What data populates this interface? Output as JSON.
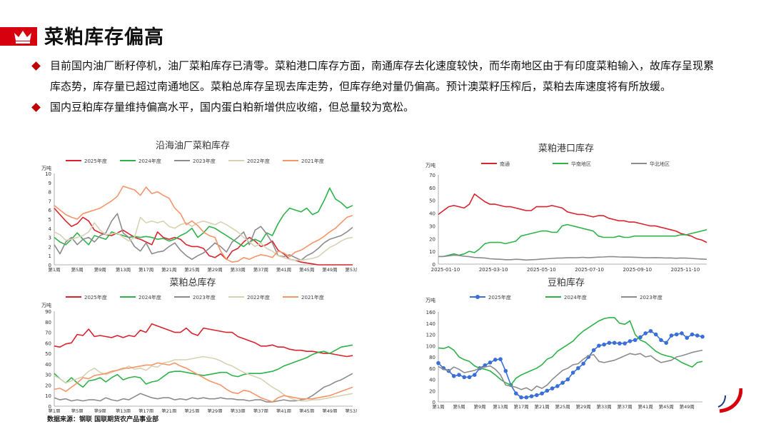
{
  "header": {
    "title": "菜粕库存偏高",
    "icon": "crown-icon"
  },
  "bullets": [
    {
      "text": "目前国内油厂断籽停机，油厂菜粕库存已清零。菜粕港口库存方面，南通库存去化速度较快，而华南地区由于有印度菜粕输入，故库存呈现累库态势，库存量已超过南通地区。菜粕总库存呈现去库走势，但库存绝对量仍偏高。预计澳菜籽压榨后，菜粕去库速度将有所放缓。"
    },
    {
      "text": "国内豆粕库存量维持偏高水平，国内蛋白粕新增供应收缩，但总量较为宽松。"
    }
  ],
  "source": "数据来源：钢联  国联期货农产品事业部",
  "colors": {
    "accent": "#d7000f",
    "red": "#d9232d",
    "green": "#2db34a",
    "gray": "#8c8c8c",
    "beige": "#d8d2b4",
    "orange": "#f4956a",
    "blue": "#3a6fd8"
  },
  "chart_data": [
    {
      "id": "coastal",
      "type": "line",
      "title": "沿海油厂菜粕库存",
      "unit": "万吨",
      "ylim": [
        0,
        10
      ],
      "yticks": [
        0,
        1,
        2,
        3,
        4,
        5,
        6,
        7,
        8,
        9,
        10
      ],
      "xlabels": [
        "第1周",
        "第5周",
        "第9周",
        "第13周",
        "第17周",
        "第21周",
        "第25周",
        "第29周",
        "第33周",
        "第37周",
        "第41周",
        "第45周",
        "第49周",
        "第53周"
      ],
      "xcount": 53,
      "series": [
        {
          "name": "2025年度",
          "color": "#d9232d",
          "values": [
            6.2,
            5.5,
            4.8,
            4.2,
            4.5,
            5.2,
            4.8,
            3.8,
            3.5,
            3.3,
            3.2,
            3.5,
            3.8,
            3.4,
            3.0,
            2.8,
            2.5,
            2.2,
            3.6,
            3.0,
            2.8,
            3.0,
            2.8,
            2.2,
            2.0,
            2.0,
            1.8,
            1.0,
            0.8,
            1.2,
            0.6,
            1.5,
            1.8,
            2.5,
            3.0,
            2.6,
            2.0,
            2.2,
            2.6,
            1.6,
            1.2,
            0.6,
            0.5,
            0.3,
            0.2,
            0.1,
            0,
            0,
            0,
            0,
            0,
            0,
            0
          ]
        },
        {
          "name": "2024年度",
          "color": "#2db34a",
          "values": [
            3.0,
            2.5,
            2.2,
            2.8,
            3.5,
            2.8,
            2.2,
            3.2,
            3.0,
            2.8,
            3.6,
            3.4,
            3.2,
            3.0,
            3.1,
            3.0,
            3.1,
            3.0,
            2.8,
            2.9,
            2.6,
            2.8,
            3.2,
            3.5,
            4.0,
            3.0,
            3.5,
            4.2,
            4.0,
            3.6,
            3.2,
            2.8,
            2.4,
            2.0,
            2.5,
            2.8,
            2.5,
            3.5,
            3.2,
            4.5,
            5.5,
            6.2,
            6.0,
            5.8,
            6.2,
            5.5,
            5.8,
            7.0,
            8.4,
            7.2,
            6.8,
            6.2,
            6.5
          ]
        },
        {
          "name": "2023年度",
          "color": "#8c8c8c",
          "values": [
            2.2,
            1.2,
            2.5,
            3.0,
            2.2,
            2.8,
            3.0,
            2.5,
            3.2,
            3.5,
            4.8,
            5.6,
            3.5,
            3.0,
            2.0,
            1.5,
            2.4,
            1.2,
            1.4,
            1.5,
            2.0,
            2.4,
            1.6,
            1.0,
            0.6,
            1.0,
            1.3,
            1.8,
            2.4,
            2.0,
            1.4,
            2.5,
            3.0,
            3.6,
            2.2,
            3.8,
            4.2,
            3.4,
            2.4,
            1.0,
            0.9,
            1.1,
            0.8,
            0.5,
            1.0,
            1.3,
            1.8,
            2.4,
            2.8,
            3.0,
            3.2,
            3.6,
            4.1
          ]
        },
        {
          "name": "2022年度",
          "color": "#d8d2b4",
          "values": [
            3.6,
            3.3,
            2.7,
            2.8,
            3.0,
            3.2,
            3.6,
            4.6,
            3.8,
            3.3,
            3.4,
            3.5,
            3.0,
            2.6,
            3.0,
            5.2,
            4.6,
            4.8,
            4.6,
            4.8,
            4.2,
            4.0,
            4.4,
            4.6,
            4.2,
            4.6,
            4.8,
            4.6,
            4.4,
            4.7,
            4.4,
            4.0,
            3.6,
            3.0,
            2.5,
            2.0,
            2.4,
            1.8,
            1.5,
            1.0,
            0.8,
            0.6,
            0.5,
            0.5,
            0.6,
            0.7,
            0.9,
            1.4,
            1.9,
            2.2,
            2.6,
            2.9,
            3.0
          ]
        },
        {
          "name": "2021年度",
          "color": "#f4956a",
          "values": [
            6.5,
            6.0,
            5.5,
            5.2,
            5.0,
            5.6,
            5.8,
            6.0,
            6.2,
            6.6,
            7.0,
            7.5,
            8.6,
            8.4,
            8.2,
            7.6,
            8.5,
            7.8,
            8.0,
            7.6,
            7.3,
            6.2,
            5.6,
            4.4,
            4.8,
            4.3,
            3.6,
            3.2,
            3.0,
            1.5,
            0.6,
            0.3,
            0.4,
            0.8,
            0.6,
            0.9,
            1.1,
            1.0,
            0.8,
            1.5,
            1.3,
            0.9,
            1.4,
            1.6,
            2.0,
            2.4,
            2.7,
            3.1,
            3.6,
            4.0,
            4.6,
            5.2,
            5.4
          ]
        }
      ]
    },
    {
      "id": "port",
      "type": "line",
      "title": "菜粕港口库存",
      "unit": "万吨",
      "ylim": [
        0,
        70
      ],
      "yticks": [
        0,
        10,
        20,
        30,
        40,
        50,
        60,
        70
      ],
      "xlabels": [
        "2025-01-10",
        "2025-03-10",
        "2025-05-10",
        "2025-07-10",
        "2025-09-10",
        "2025-11-10"
      ],
      "xcount": 53,
      "series": [
        {
          "name": "南通",
          "color": "#d9232d",
          "values": [
            39,
            42,
            45,
            46,
            45,
            44,
            47,
            55,
            52,
            49,
            47,
            47,
            46,
            45,
            45,
            44,
            43,
            42,
            42,
            45,
            45,
            45,
            46,
            45,
            44,
            41,
            40,
            39,
            39,
            38,
            37,
            38,
            38,
            36,
            35,
            34,
            34,
            33,
            33,
            32,
            31,
            30,
            30,
            29,
            28,
            27,
            26,
            24,
            23,
            22,
            20,
            19,
            17
          ]
        },
        {
          "name": "华南地区",
          "color": "#2db34a",
          "values": [
            6,
            6,
            7,
            8,
            7,
            8,
            10,
            9,
            12,
            16,
            17,
            17,
            17,
            16,
            17,
            18,
            22,
            23,
            24,
            25,
            26,
            26,
            25,
            25,
            30,
            31,
            30,
            29,
            28,
            27,
            26,
            22,
            21,
            21,
            21,
            22,
            21,
            21,
            22,
            22,
            22,
            22,
            22,
            22,
            22,
            22,
            22,
            23,
            23,
            24,
            25,
            26,
            27
          ]
        },
        {
          "name": "华北地区",
          "color": "#8c8c8c",
          "values": [
            6,
            6,
            6.5,
            7,
            6.8,
            6.2,
            5.8,
            5.2,
            5.0,
            4.8,
            4.2,
            4.0,
            3.8,
            3.5,
            3.5,
            3.8,
            3.6,
            3.2,
            3.5,
            3.6,
            4.0,
            4.2,
            4.5,
            4.7,
            4.8,
            5.0,
            5.0,
            5.1,
            5.3,
            5.0,
            5.2,
            5.5,
            5.6,
            5.8,
            5.8,
            5.6,
            5.5,
            5.5,
            5.4,
            5.2,
            5.0,
            5.0,
            5.1,
            5.0,
            4.8,
            4.9,
            4.6,
            4.8,
            4.7,
            4.5,
            4.2,
            4.0,
            3.8
          ]
        }
      ]
    },
    {
      "id": "total",
      "type": "line",
      "title": "菜粕总库存",
      "unit": "万吨",
      "ylim": [
        0,
        90
      ],
      "yticks": [
        0,
        10,
        20,
        30,
        40,
        50,
        60,
        70,
        80,
        90
      ],
      "xlabels": [
        "第1周",
        "第5周",
        "第9周",
        "第13周",
        "第17周",
        "第21周",
        "第25周",
        "第29周",
        "第33周",
        "第37周",
        "第41周",
        "第45周",
        "第49周",
        "第53周"
      ],
      "xcount": 53,
      "series": [
        {
          "name": "2025年度",
          "color": "#d9232d",
          "values": [
            57,
            56,
            59,
            60,
            68,
            67,
            73,
            66,
            67,
            66,
            65,
            67,
            65,
            67,
            66,
            72,
            70,
            78,
            76,
            74,
            72,
            70,
            70,
            74,
            69,
            67,
            74,
            73,
            72,
            71,
            70,
            70,
            66,
            64,
            62,
            60,
            57,
            57,
            58,
            56,
            56,
            54,
            53,
            53,
            52,
            52,
            51,
            50,
            50,
            49,
            48,
            47,
            48
          ]
        },
        {
          "name": "2024年度",
          "color": "#2db34a",
          "values": [
            31,
            26,
            22,
            27,
            22,
            18,
            24,
            25,
            27,
            23,
            27,
            30,
            25,
            27,
            28,
            27,
            21,
            23,
            24,
            28,
            32,
            33,
            33,
            32,
            31,
            30,
            29,
            30,
            31,
            32,
            32,
            29,
            28,
            30,
            31,
            31,
            31,
            32,
            33,
            35,
            38,
            40,
            42,
            44,
            46,
            49,
            51,
            52,
            50,
            53,
            56,
            57,
            58
          ]
        },
        {
          "name": "2023年度",
          "color": "#8c8c8c",
          "values": [
            8,
            6,
            7,
            5,
            6,
            5,
            6,
            6,
            5,
            8,
            6,
            5,
            7,
            6,
            9,
            12,
            10,
            8,
            7,
            8,
            8,
            6,
            7,
            6,
            8,
            7,
            8,
            7,
            7,
            8,
            7,
            7,
            6,
            6,
            5,
            6,
            6,
            4,
            4,
            5,
            6,
            5,
            5,
            6,
            7,
            10,
            14,
            18,
            20,
            23,
            25,
            28,
            31
          ]
        },
        {
          "name": "2022年度",
          "color": "#d8d2b4",
          "values": [
            29,
            26,
            22,
            24,
            26,
            28,
            33,
            36,
            32,
            30,
            32,
            34,
            35,
            38,
            35,
            36,
            34,
            38,
            37,
            41,
            42,
            44,
            44,
            44,
            45,
            46,
            47,
            46,
            45,
            43,
            40,
            38,
            35,
            32,
            30,
            28,
            26,
            22,
            18,
            15,
            11,
            8,
            6,
            5,
            5,
            6,
            6,
            7,
            8,
            9,
            10,
            11,
            12
          ]
        },
        {
          "name": "2021年度",
          "color": "#f4956a",
          "values": [
            16,
            17,
            14,
            18,
            22,
            27,
            26,
            29,
            30,
            31,
            33,
            34,
            36,
            36,
            37,
            38,
            39,
            39,
            41,
            40,
            39,
            41,
            38,
            36,
            33,
            30,
            27,
            24,
            22,
            20,
            16,
            13,
            12,
            15,
            14,
            11,
            8,
            6,
            4,
            8,
            10,
            9,
            8,
            7,
            7,
            7,
            8,
            9,
            10,
            12,
            14,
            16,
            18
          ]
        }
      ]
    },
    {
      "id": "soymeal",
      "type": "line",
      "title": "豆粕库存",
      "unit": "万吨",
      "ylim": [
        0,
        160
      ],
      "yticks": [
        0,
        20,
        40,
        60,
        80,
        100,
        120,
        140,
        160
      ],
      "xlabels": [
        "第1周",
        "第5周",
        "第9周",
        "第13周",
        "第17周",
        "第21周",
        "第25周",
        "第29周",
        "第33周",
        "第37周",
        "第41周",
        "第45周",
        "第49周"
      ],
      "xcount": 52,
      "series": [
        {
          "name": "2025年度",
          "color": "#3a6fd8",
          "marker": true,
          "values": [
            69,
            60,
            55,
            46,
            48,
            44,
            44,
            48,
            60,
            65,
            70,
            75,
            76,
            55,
            30,
            15,
            8,
            8,
            10,
            12,
            15,
            20,
            24,
            28,
            34,
            40,
            52,
            60,
            68,
            80,
            92,
            100,
            102,
            105,
            105,
            104,
            104,
            108,
            110,
            115,
            122,
            126,
            120,
            110,
            105,
            118,
            120,
            122,
            114,
            120,
            118,
            116
          ]
        },
        {
          "name": "2024年度",
          "color": "#2db34a",
          "values": [
            96,
            95,
            98,
            92,
            80,
            75,
            72,
            64,
            60,
            58,
            55,
            48,
            40,
            34,
            30,
            42,
            48,
            52,
            56,
            60,
            66,
            76,
            80,
            90,
            96,
            102,
            108,
            118,
            126,
            132,
            138,
            144,
            148,
            150,
            150,
            140,
            138,
            144,
            120,
            110,
            106,
            98,
            90,
            85,
            82,
            80,
            76,
            70,
            66,
            62,
            70,
            72
          ]
        },
        {
          "name": "2023年度",
          "color": "#8c8c8c",
          "values": [
            63,
            58,
            55,
            62,
            58,
            52,
            54,
            56,
            60,
            62,
            64,
            58,
            48,
            30,
            28,
            26,
            22,
            25,
            20,
            28,
            24,
            30,
            40,
            48,
            56,
            60,
            66,
            68,
            76,
            82,
            84,
            72,
            70,
            72,
            74,
            78,
            82,
            86,
            84,
            86,
            80,
            82,
            75,
            70,
            72,
            74,
            80,
            82,
            85,
            88,
            90,
            92
          ]
        }
      ]
    }
  ]
}
